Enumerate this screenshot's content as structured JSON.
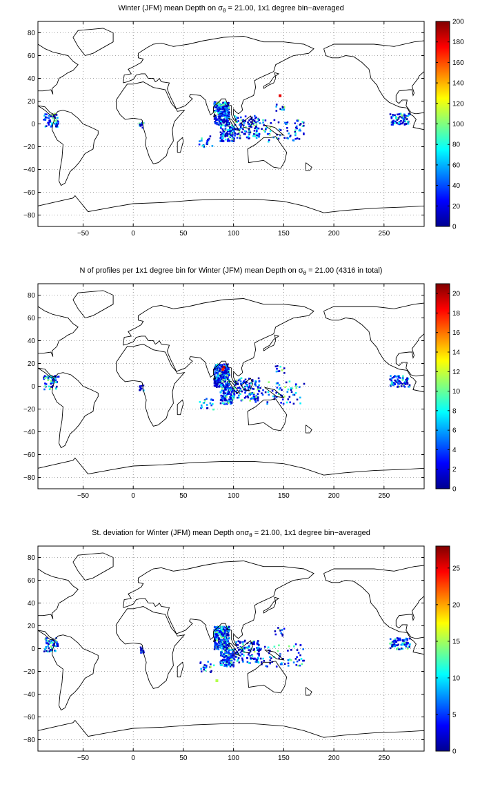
{
  "panels": [
    {
      "title_pre": "Winter (JFM) mean Depth on σ",
      "title_sub": "θ",
      "title_post": " = 21.00, 1x1 degree bin−averaged",
      "colorbar": {
        "min": 0,
        "max": 200,
        "ticks": [
          0,
          20,
          40,
          60,
          80,
          100,
          120,
          140,
          160,
          180,
          200
        ]
      }
    },
    {
      "title_pre": "N of profiles per 1x1 degree bin for Winter (JFM) mean Depth on σ",
      "title_sub": "θ",
      "title_post": " = 21.00 (4316 in total)",
      "colorbar": {
        "min": 0,
        "max": 21,
        "ticks": [
          0,
          2,
          4,
          6,
          8,
          10,
          12,
          14,
          16,
          18,
          20
        ]
      }
    },
    {
      "title_pre": "St. deviation for Winter (JFM) mean Depth onσ",
      "title_sub": "θ",
      "title_post": " = 21.00, 1x1 degree bin−averaged",
      "colorbar": {
        "min": 0,
        "max": 28,
        "ticks": [
          0,
          5,
          10,
          15,
          20,
          25
        ]
      }
    }
  ],
  "map_axes": {
    "xlim": [
      -95,
      290
    ],
    "ylim": [
      -90,
      90
    ],
    "xticks": [
      -50,
      0,
      50,
      100,
      150,
      200,
      250
    ],
    "yticks": [
      -80,
      -60,
      -40,
      -20,
      0,
      20,
      40,
      60,
      80
    ],
    "grid": "dotted"
  },
  "colormap": "jet",
  "colors": {
    "jet_stops": [
      "#00008f",
      "#0000ff",
      "#00ffff",
      "#ffff00",
      "#ff0000",
      "#800000"
    ],
    "coastline": "#000000",
    "grid": "#555555"
  }
}
